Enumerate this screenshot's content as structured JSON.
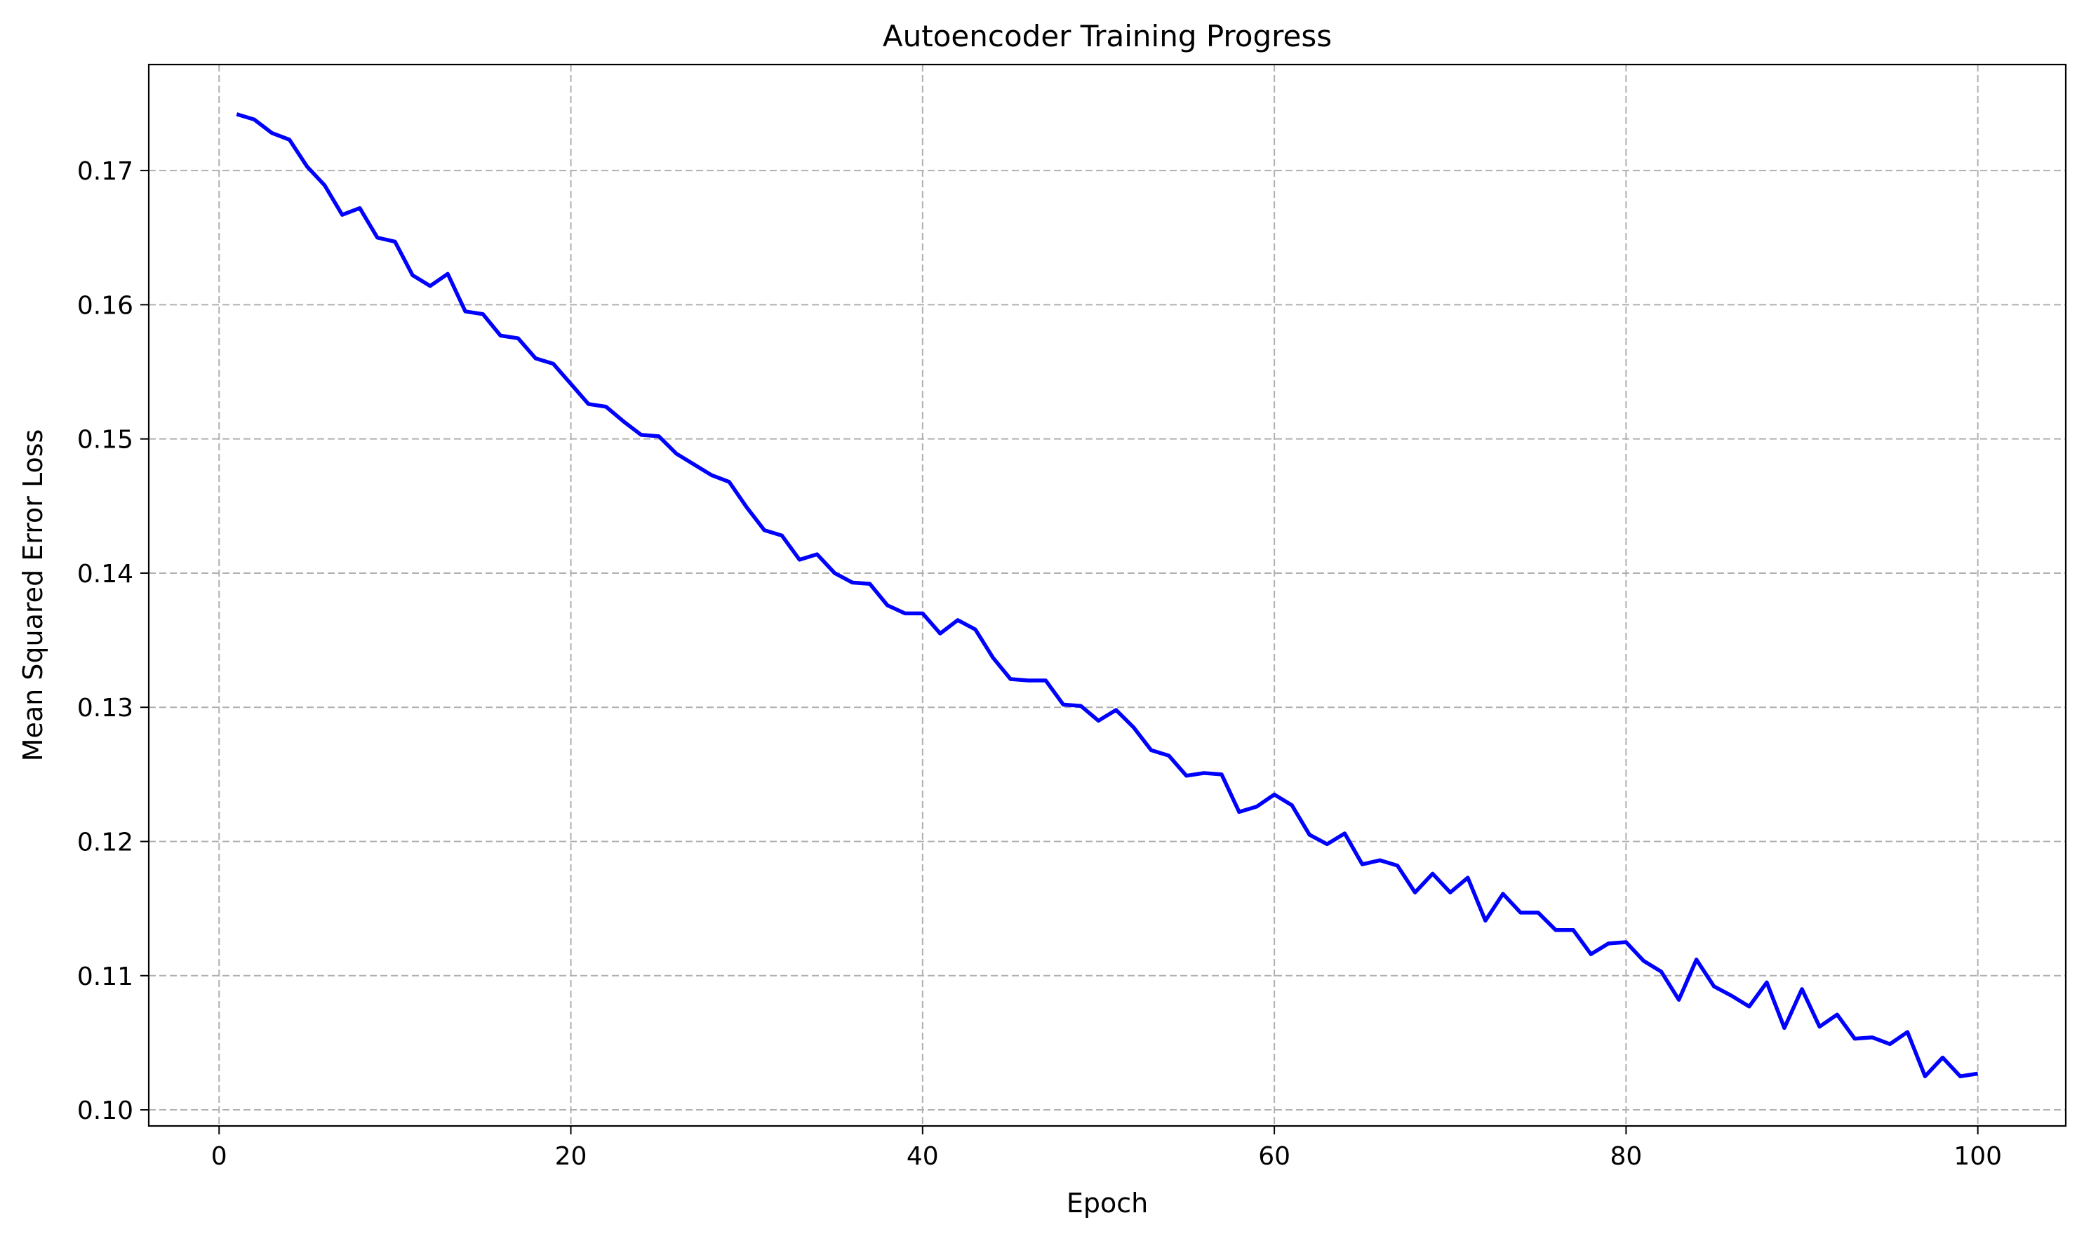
{
  "chart_data": {
    "type": "line",
    "title": "Autoencoder Training Progress",
    "xlabel": "Epoch",
    "ylabel": "Mean Squared Error Loss",
    "xlim": [
      -4,
      105
    ],
    "ylim": [
      0.0988,
      0.1779
    ],
    "xticks": [
      0,
      20,
      40,
      60,
      80,
      100
    ],
    "xtick_labels": [
      "0",
      "20",
      "40",
      "60",
      "80",
      "100"
    ],
    "yticks": [
      0.1,
      0.11,
      0.12,
      0.13,
      0.14,
      0.15,
      0.16,
      0.17
    ],
    "ytick_labels": [
      "0.10",
      "0.11",
      "0.12",
      "0.13",
      "0.14",
      "0.15",
      "0.16",
      "0.17"
    ],
    "grid": true,
    "grid_style": "dashed",
    "line_color": "#0000ff",
    "grid_color": "#b0b0b0",
    "series": [
      {
        "x": [
          1,
          2,
          3,
          4,
          5,
          6,
          7,
          8,
          9,
          10,
          11,
          12,
          13,
          14,
          15,
          16,
          17,
          18,
          19,
          20,
          21,
          22,
          23,
          24,
          25,
          26,
          27,
          28,
          29,
          30,
          31,
          32,
          33,
          34,
          35,
          36,
          37,
          38,
          39,
          40,
          41,
          42,
          43,
          44,
          45,
          46,
          47,
          48,
          49,
          50,
          51,
          52,
          53,
          54,
          55,
          56,
          57,
          58,
          59,
          60,
          61,
          62,
          63,
          64,
          65,
          66,
          67,
          68,
          69,
          70,
          71,
          72,
          73,
          74,
          75,
          76,
          77,
          78,
          79,
          80,
          81,
          82,
          83,
          84,
          85,
          86,
          87,
          88,
          89,
          90,
          91,
          92,
          93,
          94,
          95,
          96,
          97,
          98,
          99,
          100
        ],
        "values": [
          0.1742,
          0.1738,
          0.1728,
          0.1723,
          0.1703,
          0.1689,
          0.1667,
          0.1672,
          0.165,
          0.1647,
          0.1622,
          0.1614,
          0.1623,
          0.1595,
          0.1593,
          0.1577,
          0.1575,
          0.156,
          0.1556,
          0.1541,
          0.1526,
          0.1524,
          0.1513,
          0.1503,
          0.1502,
          0.1489,
          0.1481,
          0.1473,
          0.1468,
          0.1449,
          0.1432,
          0.1428,
          0.141,
          0.1414,
          0.14,
          0.1393,
          0.1392,
          0.1376,
          0.137,
          0.137,
          0.1355,
          0.1365,
          0.1358,
          0.1337,
          0.1321,
          0.132,
          0.132,
          0.1302,
          0.1301,
          0.129,
          0.1298,
          0.1285,
          0.1268,
          0.1264,
          0.1249,
          0.1251,
          0.125,
          0.1222,
          0.1226,
          0.1235,
          0.1227,
          0.1205,
          0.1198,
          0.1206,
          0.1183,
          0.1186,
          0.1182,
          0.1162,
          0.1176,
          0.1162,
          0.1173,
          0.1141,
          0.1161,
          0.1147,
          0.1147,
          0.1134,
          0.1134,
          0.1116,
          0.1124,
          0.1125,
          0.1111,
          0.1103,
          0.1082,
          0.1112,
          0.1092,
          0.1085,
          0.1077,
          0.1095,
          0.1061,
          0.109,
          0.1062,
          0.1071,
          0.1053,
          0.1054,
          0.1049,
          0.1058,
          0.1025,
          0.1039,
          0.1025,
          0.1027
        ]
      }
    ]
  }
}
